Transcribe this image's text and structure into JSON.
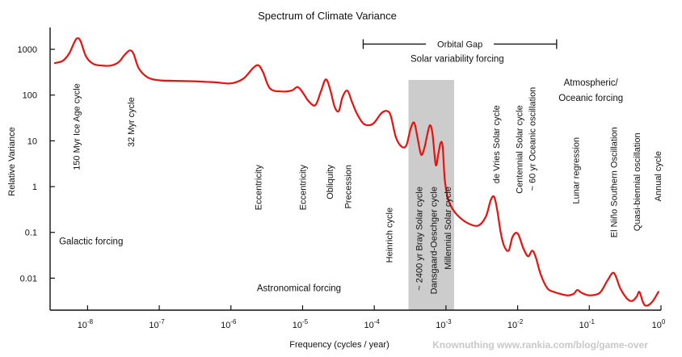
{
  "chart_data": {
    "type": "line",
    "title": "Spectrum of Climate Variance",
    "xlabel": "Frequency (cycles / year)",
    "ylabel": "Relative Variance",
    "x_scale": "log",
    "y_scale": "log",
    "xlim": [
      3e-09,
      1
    ],
    "ylim": [
      0.002,
      3000
    ],
    "x_ticks": [
      {
        "value": 1e-08,
        "base": "10",
        "exp": "-8"
      },
      {
        "value": 1e-07,
        "base": "10",
        "exp": "-7"
      },
      {
        "value": 1e-06,
        "base": "10",
        "exp": "-6"
      },
      {
        "value": 1e-05,
        "base": "10",
        "exp": "-5"
      },
      {
        "value": 0.0001,
        "base": "10",
        "exp": "-4"
      },
      {
        "value": 0.001,
        "base": "10",
        "exp": "-3"
      },
      {
        "value": 0.01,
        "base": "10",
        "exp": "-2"
      },
      {
        "value": 0.1,
        "base": "10",
        "exp": "-1"
      },
      {
        "value": 1,
        "base": "10",
        "exp": "0"
      }
    ],
    "y_ticks": [
      {
        "value": 1000,
        "label": "1000"
      },
      {
        "value": 100,
        "label": "100"
      },
      {
        "value": 10,
        "label": "10"
      },
      {
        "value": 1,
        "label": "1"
      },
      {
        "value": 0.1,
        "label": "0.1"
      },
      {
        "value": 0.01,
        "label": "0.01"
      }
    ],
    "series": [
      {
        "color": "#e8120f",
        "x": [
          3.5e-09,
          4.5e-09,
          5.5e-09,
          6.5e-09,
          7.2e-09,
          8e-09,
          9.5e-09,
          1.2e-08,
          1.6e-08,
          2.1e-08,
          2.7e-08,
          3.3e-08,
          3.9e-08,
          4.4e-08,
          5.2e-08,
          7e-08,
          1e-07,
          1.5e-07,
          3e-07,
          6e-07,
          1e-06,
          1.5e-06,
          2e-06,
          2.4e-06,
          2.8e-06,
          3.5e-06,
          5e-06,
          7e-06,
          8.5e-06,
          1e-05,
          1.2e-05,
          1.5e-05,
          1.8e-05,
          2.1e-05,
          2.4e-05,
          2.8e-05,
          3.2e-05,
          3.6e-05,
          4.2e-05,
          4.9e-05,
          5.7e-05,
          7e-05,
          8.5e-05,
          0.0001,
          0.000125,
          0.00015,
          0.00017,
          0.0002,
          0.00024,
          0.00028,
          0.00032,
          0.00036,
          0.0004,
          0.00045,
          0.0005,
          0.00055,
          0.0006,
          0.00065,
          0.00072,
          0.00078,
          0.00084,
          0.0009,
          0.00096,
          0.00105,
          0.00115,
          0.0014,
          0.002,
          0.0028,
          0.0036,
          0.0042,
          0.0047,
          0.0052,
          0.0058,
          0.0065,
          0.0075,
          0.0085,
          0.01,
          0.012,
          0.014,
          0.016,
          0.018,
          0.021,
          0.026,
          0.032,
          0.04,
          0.05,
          0.06,
          0.068,
          0.078,
          0.1,
          0.14,
          0.18,
          0.22,
          0.27,
          0.34,
          0.4,
          0.46,
          0.5,
          0.56,
          0.62,
          0.75,
          0.92
        ],
        "y": [
          500,
          560,
          800,
          1400,
          1750,
          1500,
          700,
          480,
          440,
          440,
          520,
          760,
          950,
          780,
          380,
          240,
          210,
          205,
          200,
          190,
          180,
          230,
          380,
          450,
          320,
          140,
          120,
          125,
          150,
          115,
          75,
          60,
          120,
          220,
          140,
          55,
          45,
          90,
          125,
          70,
          40,
          24,
          22,
          25,
          40,
          45,
          35,
          12,
          7.5,
          8,
          18,
          25,
          12,
          5,
          7,
          14,
          22,
          14,
          3,
          5,
          9,
          7.5,
          1.5,
          0.6,
          0.4,
          0.25,
          0.16,
          0.14,
          0.22,
          0.5,
          0.6,
          0.3,
          0.1,
          0.05,
          0.04,
          0.08,
          0.095,
          0.045,
          0.03,
          0.04,
          0.028,
          0.012,
          0.006,
          0.005,
          0.0045,
          0.0042,
          0.0045,
          0.0055,
          0.0048,
          0.0042,
          0.0048,
          0.009,
          0.013,
          0.006,
          0.0035,
          0.0032,
          0.004,
          0.005,
          0.003,
          0.0025,
          0.003,
          0.005
        ]
      }
    ],
    "shaded_band": {
      "x_range": [
        0.0003,
        0.0013
      ],
      "color": "#cccccc"
    },
    "bracket": {
      "label": "Orbital Gap",
      "x_range": [
        7e-05,
        0.035
      ],
      "y": 1300
    },
    "annotations": {
      "cycles": [
        {
          "text": "150 Myr Ice Age cycle",
          "x": 7e-09,
          "y_top": 180
        },
        {
          "text": "32 Myr cycle",
          "x": 4e-08,
          "y_top": 90
        },
        {
          "text": "Eccentricity",
          "x": 2.4e-06,
          "y_top": 3.0
        },
        {
          "text": "Eccentricity",
          "x": 1e-05,
          "y_top": 3.0
        },
        {
          "text": "Obliquity",
          "x": 2.4e-05,
          "y_top": 3.0
        },
        {
          "text": "Precession",
          "x": 4.3e-05,
          "y_top": 3.0
        },
        {
          "text": "Heinrich cycle",
          "x": 0.00016,
          "y_top": 0.35
        },
        {
          "text": "~ 2400 yr Bray Solar cycle",
          "x": 0.00042,
          "y_top": 1.0
        },
        {
          "text": "Dansgaard-Oeschger cycle",
          "x": 0.00067,
          "y_top": 1.0
        },
        {
          "text": "Millennial Solar cycle",
          "x": 0.00105,
          "y_top": 1.0
        },
        {
          "text": "de Vries Solar cycle",
          "x": 0.005,
          "y_top": 60
        },
        {
          "text": "Centennial Solar cycle",
          "x": 0.0105,
          "y_top": 60
        },
        {
          "text": "~ 60 yr Oceanic oscillation",
          "x": 0.016,
          "y_top": 150
        },
        {
          "text": "Lunar regression",
          "x": 0.065,
          "y_top": 12
        },
        {
          "text": "El Niño Southern Oscillation",
          "x": 0.22,
          "y_top": 20
        },
        {
          "text": "Quasi-biennial oscillation",
          "x": 0.46,
          "y_top": 15
        },
        {
          "text": "Annual cycle",
          "x": 0.9,
          "y_top": 6
        }
      ],
      "forcing": [
        {
          "text": "Galactic forcing",
          "x": 4e-09,
          "y": 0.055
        },
        {
          "text": "Astronomical forcing",
          "x": 2.3e-06,
          "y": 0.0052
        },
        {
          "text": "Solar variability forcing",
          "x": 0.00032,
          "y": 530
        },
        {
          "text": "Atmospheric/",
          "x": 0.105,
          "y": 160,
          "anchor": "middle"
        },
        {
          "text": "Oceanic forcing",
          "x": 0.105,
          "y": 75,
          "anchor": "middle"
        }
      ]
    }
  },
  "watermark": "Knownuthing www.rankia.com/blog/game-over"
}
